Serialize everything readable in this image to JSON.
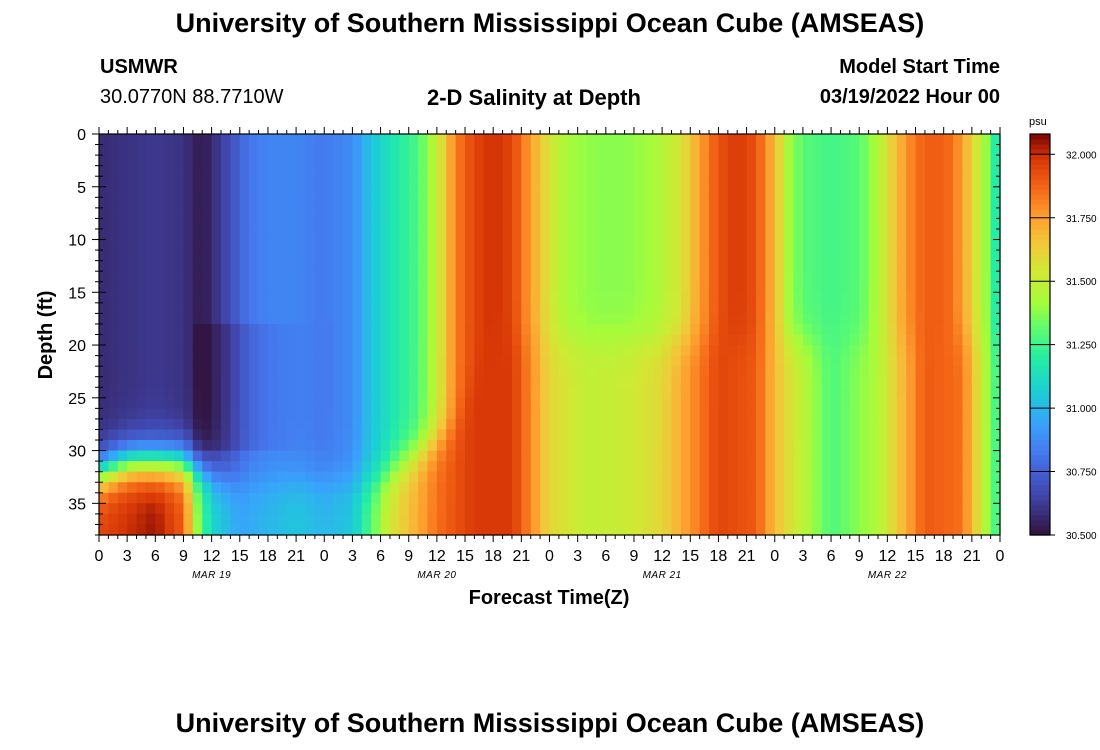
{
  "header": {
    "title": "University of Southern Mississippi Ocean Cube (AMSEAS)",
    "station": "USMWR",
    "coords": "30.0770N  88.7710W",
    "plot_title": "2-D Salinity at Depth",
    "model_start_label": "Model Start Time",
    "model_start_value": "03/19/2022 Hour 00"
  },
  "footer": {
    "title": "University of Southern Mississippi Ocean Cube (AMSEAS)"
  },
  "chart_data": {
    "type": "heatmap",
    "title": "2-D Salinity at Depth",
    "xlabel": "Forecast Time(Z)",
    "ylabel": "Depth (ft)",
    "xlim": [
      0,
      96
    ],
    "ylim": [
      0,
      38
    ],
    "y_ticks": [
      0,
      5,
      10,
      15,
      20,
      25,
      30,
      35
    ],
    "x_tick_labels": [
      "0",
      "3",
      "6",
      "9",
      "12",
      "15",
      "18",
      "21",
      "0",
      "3",
      "6",
      "9",
      "12",
      "15",
      "18",
      "21",
      "0",
      "3",
      "6",
      "9",
      "12",
      "15",
      "18",
      "21",
      "0",
      "3",
      "6",
      "9",
      "12",
      "15",
      "18",
      "21",
      "0"
    ],
    "day_labels": [
      {
        "hour": 12,
        "label": "MAR 19"
      },
      {
        "hour": 36,
        "label": "MAR 20"
      },
      {
        "hour": 60,
        "label": "MAR 21"
      },
      {
        "hour": 84,
        "label": "MAR 22"
      }
    ],
    "colorbar": {
      "unit": "psu",
      "min": 30.5,
      "max": 32.08,
      "tick_values": [
        30.5,
        30.75,
        31.0,
        31.25,
        31.5,
        31.75,
        32.0
      ],
      "tick_labels": [
        "30.500",
        "30.750",
        "31.000",
        "31.250",
        "31.500",
        "31.750",
        "32.000"
      ]
    },
    "surface_salinity_by_hour": [
      [
        0,
        30.58
      ],
      [
        3,
        30.6
      ],
      [
        6,
        30.62
      ],
      [
        9,
        30.6
      ],
      [
        11,
        30.52
      ],
      [
        13,
        30.63
      ],
      [
        16,
        30.82
      ],
      [
        18,
        30.86
      ],
      [
        21,
        30.86
      ],
      [
        24,
        30.83
      ],
      [
        27,
        30.88
      ],
      [
        28.5,
        31.0
      ],
      [
        31,
        31.15
      ],
      [
        34,
        31.28
      ],
      [
        36,
        31.5
      ],
      [
        38,
        31.82
      ],
      [
        40,
        31.95
      ],
      [
        42,
        32.0
      ],
      [
        44,
        31.95
      ],
      [
        46,
        31.75
      ],
      [
        48,
        31.55
      ],
      [
        50,
        31.42
      ],
      [
        53,
        31.38
      ],
      [
        56,
        31.38
      ],
      [
        59,
        31.42
      ],
      [
        62,
        31.55
      ],
      [
        64,
        31.75
      ],
      [
        66,
        31.92
      ],
      [
        68,
        31.98
      ],
      [
        70,
        31.92
      ],
      [
        72,
        31.68
      ],
      [
        73.5,
        31.42
      ],
      [
        75,
        31.3
      ],
      [
        78,
        31.26
      ],
      [
        81,
        31.3
      ],
      [
        83,
        31.45
      ],
      [
        85,
        31.68
      ],
      [
        87,
        31.85
      ],
      [
        89,
        31.9
      ],
      [
        91,
        31.85
      ],
      [
        93,
        31.62
      ],
      [
        94.5,
        31.4
      ],
      [
        95.5,
        31.2
      ],
      [
        96,
        31.15
      ]
    ],
    "bottom_layer_salinity_by_hour": [
      [
        0,
        31.95
      ],
      [
        3,
        32.0
      ],
      [
        6,
        32.05
      ],
      [
        9,
        31.9
      ],
      [
        10.5,
        31.4
      ],
      [
        12,
        31.1
      ],
      [
        15,
        30.95
      ],
      [
        18,
        31.0
      ],
      [
        21,
        31.05
      ],
      [
        24,
        31.0
      ],
      [
        27,
        31.05
      ],
      [
        29,
        31.3
      ],
      [
        31,
        31.55
      ],
      [
        34,
        31.72
      ],
      [
        36,
        31.85
      ],
      [
        40,
        31.98
      ],
      [
        44,
        31.98
      ],
      [
        46,
        31.8
      ],
      [
        48,
        31.6
      ],
      [
        52,
        31.5
      ],
      [
        56,
        31.52
      ],
      [
        60,
        31.6
      ],
      [
        62,
        31.72
      ],
      [
        66,
        31.95
      ],
      [
        70,
        31.9
      ],
      [
        72,
        31.68
      ],
      [
        78,
        31.28
      ],
      [
        83,
        31.45
      ],
      [
        88,
        31.9
      ],
      [
        92,
        31.85
      ],
      [
        96,
        31.2
      ]
    ]
  }
}
